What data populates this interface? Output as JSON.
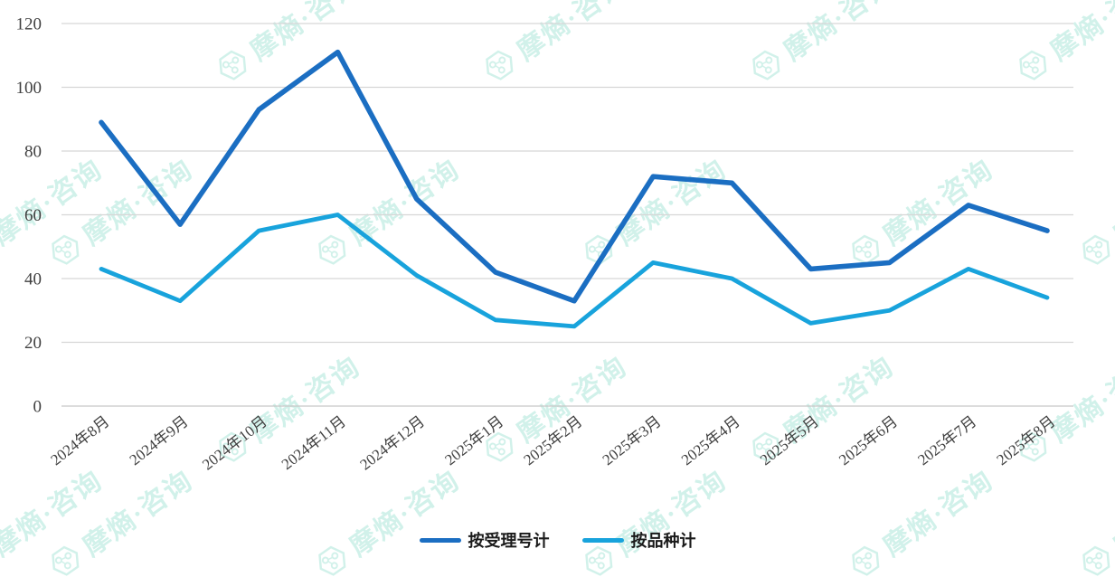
{
  "chart_data": {
    "type": "line",
    "title": "",
    "categories": [
      "2024年8月",
      "2024年9月",
      "2024年10月",
      "2024年11月",
      "2024年12月",
      "2025年1月",
      "2025年2月",
      "2025年3月",
      "2025年4月",
      "2025年5月",
      "2025年6月",
      "2025年7月",
      "2025年8月"
    ],
    "series": [
      {
        "name": "按受理号计",
        "color": "#1B6EC2",
        "values": [
          89,
          57,
          93,
          111,
          65,
          42,
          33,
          72,
          70,
          43,
          45,
          63,
          55
        ]
      },
      {
        "name": "按品种计",
        "color": "#18A3DC",
        "values": [
          43,
          33,
          55,
          60,
          41,
          27,
          25,
          45,
          40,
          26,
          30,
          43,
          34
        ]
      }
    ],
    "xlabel": "",
    "ylabel": "",
    "ylim": [
      0,
      120
    ],
    "ytick_step": 20,
    "y_tick_labels": [
      "0",
      "20",
      "40",
      "60",
      "80",
      "100",
      "120"
    ],
    "grid": "horizontal-only",
    "gridline_color": "#D6D6D6",
    "axis_line_color": "#C8C8C8",
    "axis_label_color": "#3F3F3F",
    "x_label_rotation_deg": -38,
    "legend_position": "bottom-center"
  },
  "legend": {
    "items": [
      {
        "label": "按受理号计",
        "color": "#1B6EC2"
      },
      {
        "label": "按品种计",
        "color": "#18A3DC"
      }
    ]
  },
  "watermark": {
    "icon": "hexagon-molecule-logo-icon",
    "text": "摩熵·咨询",
    "color": "#7CD8C3"
  }
}
